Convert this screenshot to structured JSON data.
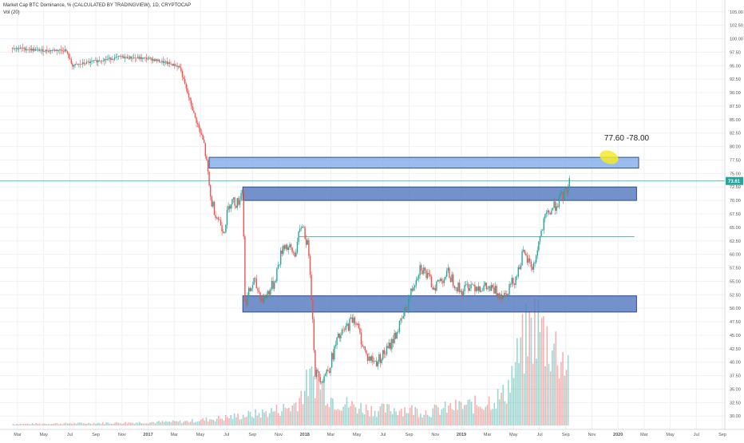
{
  "header": {
    "symbol_line": "Market Cap BTC Dominance, % (CALCULATED BY TRADINGVIEW), 1D, CRYPTOCAP",
    "volume_label": "Vol (20)"
  },
  "annotation": {
    "target_text": "77.60 -78.00"
  },
  "price_tag": {
    "value": "73.61",
    "color": "#26a69a"
  },
  "colors": {
    "up": "#26a69a",
    "down": "#ef5350",
    "zone_light": "#7aa7e8",
    "zone_dark": "#5b7fc2",
    "highlight": "#f2ea2a",
    "grid": "#eef0f3"
  },
  "chart_data": {
    "type": "candlestick",
    "title": "Market Cap BTC Dominance, % (CALCULATED BY TRADINGVIEW), 1D, CRYPTOCAP",
    "y_tick_labels": [
      "105.00",
      "102.50",
      "100.00",
      "97.50",
      "95.00",
      "92.50",
      "90.00",
      "87.50",
      "85.00",
      "82.50",
      "80.00",
      "77.50",
      "75.00",
      "72.50",
      "70.00",
      "67.50",
      "65.00",
      "62.50",
      "60.00",
      "57.50",
      "55.00",
      "52.50",
      "50.00",
      "47.50",
      "45.00",
      "42.50",
      "40.00",
      "37.50",
      "35.00",
      "32.50",
      "30.00"
    ],
    "ylim": [
      29,
      106
    ],
    "x_tick_labels": [
      "Mar",
      "May",
      "Jul",
      "Sep",
      "Nov",
      "2017",
      "Mar",
      "May",
      "Jul",
      "Sep",
      "Nov",
      "2018",
      "Mar",
      "May",
      "Jul",
      "Sep",
      "Nov",
      "2019",
      "Mar",
      "May",
      "Jul",
      "Sep",
      "Nov",
      "2020",
      "Mar",
      "May",
      "Jul",
      "Sep"
    ],
    "price_path": [
      {
        "x": "2016-01-20",
        "y": 98.3
      },
      {
        "x": "2016-04-01",
        "y": 97.8
      },
      {
        "x": "2016-05-25",
        "y": 97.9
      },
      {
        "x": "2016-06-10",
        "y": 95.0
      },
      {
        "x": "2016-08-01",
        "y": 95.8
      },
      {
        "x": "2016-10-01",
        "y": 96.6
      },
      {
        "x": "2016-12-10",
        "y": 96.3
      },
      {
        "x": "2017-01-20",
        "y": 95.5
      },
      {
        "x": "2017-02-20",
        "y": 94.8
      },
      {
        "x": "2017-03-10",
        "y": 90.0
      },
      {
        "x": "2017-04-01",
        "y": 84.5
      },
      {
        "x": "2017-04-20",
        "y": 80.0
      },
      {
        "x": "2017-05-05",
        "y": 70.0
      },
      {
        "x": "2017-05-20",
        "y": 67.0
      },
      {
        "x": "2017-06-05",
        "y": 64.5
      },
      {
        "x": "2017-06-20",
        "y": 70.0
      },
      {
        "x": "2017-07-08",
        "y": 69.5
      },
      {
        "x": "2017-07-20",
        "y": 72.5
      },
      {
        "x": "2017-07-25",
        "y": 51.0
      },
      {
        "x": "2017-08-15",
        "y": 55.0
      },
      {
        "x": "2017-09-05",
        "y": 51.5
      },
      {
        "x": "2017-10-01",
        "y": 54.5
      },
      {
        "x": "2017-10-25",
        "y": 62.0
      },
      {
        "x": "2017-11-20",
        "y": 60.0
      },
      {
        "x": "2017-12-08",
        "y": 66.0
      },
      {
        "x": "2017-12-25",
        "y": 60.0
      },
      {
        "x": "2018-01-08",
        "y": 38.0
      },
      {
        "x": "2018-01-25",
        "y": 37.0
      },
      {
        "x": "2018-02-10",
        "y": 39.0
      },
      {
        "x": "2018-03-01",
        "y": 44.0
      },
      {
        "x": "2018-03-20",
        "y": 46.0
      },
      {
        "x": "2018-04-10",
        "y": 48.5
      },
      {
        "x": "2018-05-10",
        "y": 41.0
      },
      {
        "x": "2018-06-01",
        "y": 40.0
      },
      {
        "x": "2018-07-01",
        "y": 42.5
      },
      {
        "x": "2018-08-01",
        "y": 47.5
      },
      {
        "x": "2018-09-01",
        "y": 55.0
      },
      {
        "x": "2018-09-15",
        "y": 58.0
      },
      {
        "x": "2018-10-15",
        "y": 54.0
      },
      {
        "x": "2018-11-20",
        "y": 56.5
      },
      {
        "x": "2018-12-20",
        "y": 53.0
      },
      {
        "x": "2019-01-10",
        "y": 54.5
      },
      {
        "x": "2019-03-01",
        "y": 53.5
      },
      {
        "x": "2019-04-01",
        "y": 52.5
      },
      {
        "x": "2019-05-01",
        "y": 56.0
      },
      {
        "x": "2019-05-15",
        "y": 60.0
      },
      {
        "x": "2019-06-10",
        "y": 57.5
      },
      {
        "x": "2019-06-25",
        "y": 63.0
      },
      {
        "x": "2019-07-10",
        "y": 67.0
      },
      {
        "x": "2019-07-25",
        "y": 68.5
      },
      {
        "x": "2019-08-10",
        "y": 70.0
      },
      {
        "x": "2019-08-25",
        "y": 71.5
      },
      {
        "x": "2019-09-05",
        "y": 73.6
      }
    ],
    "volume_bars": [
      {
        "x": "2016-01-20",
        "v": 0.2
      },
      {
        "x": "2016-08-01",
        "v": 0.3
      },
      {
        "x": "2017-03-01",
        "v": 0.5
      },
      {
        "x": "2017-06-01",
        "v": 1.0
      },
      {
        "x": "2017-09-01",
        "v": 1.6
      },
      {
        "x": "2017-11-15",
        "v": 2.5
      },
      {
        "x": "2017-12-20",
        "v": 5.5
      },
      {
        "x": "2018-01-10",
        "v": 6.5
      },
      {
        "x": "2018-02-15",
        "v": 3.5
      },
      {
        "x": "2018-04-01",
        "v": 2.6
      },
      {
        "x": "2018-06-01",
        "v": 2.0
      },
      {
        "x": "2018-08-01",
        "v": 2.2
      },
      {
        "x": "2018-10-01",
        "v": 1.8
      },
      {
        "x": "2018-12-01",
        "v": 2.4
      },
      {
        "x": "2019-02-01",
        "v": 2.8
      },
      {
        "x": "2019-04-01",
        "v": 4.0
      },
      {
        "x": "2019-05-15",
        "v": 10.5
      },
      {
        "x": "2019-06-15",
        "v": 13.5
      },
      {
        "x": "2019-07-01",
        "v": 12.0
      },
      {
        "x": "2019-08-01",
        "v": 10.0
      },
      {
        "x": "2019-09-01",
        "v": 8.0
      }
    ],
    "zones": [
      {
        "name": "upper-target-zone",
        "from": "2017-05-01",
        "to": "2020-02-15",
        "y_low": 76.0,
        "y_high": 78.0,
        "style": "light"
      },
      {
        "name": "mid-resistance-zone",
        "from": "2017-07-20",
        "to": "2020-02-10",
        "y_low": 70.0,
        "y_high": 72.5,
        "style": "dark"
      },
      {
        "name": "support-zone",
        "from": "2017-07-20",
        "to": "2020-02-10",
        "y_low": 49.3,
        "y_high": 52.3,
        "style": "dark"
      }
    ],
    "h_lines": [
      {
        "name": "level-63",
        "from": "2017-12-01",
        "to": "2020-02-05",
        "y": 63.3
      },
      {
        "name": "current-price-line",
        "y": 73.61
      }
    ],
    "grid": true,
    "legend": "top-left"
  }
}
